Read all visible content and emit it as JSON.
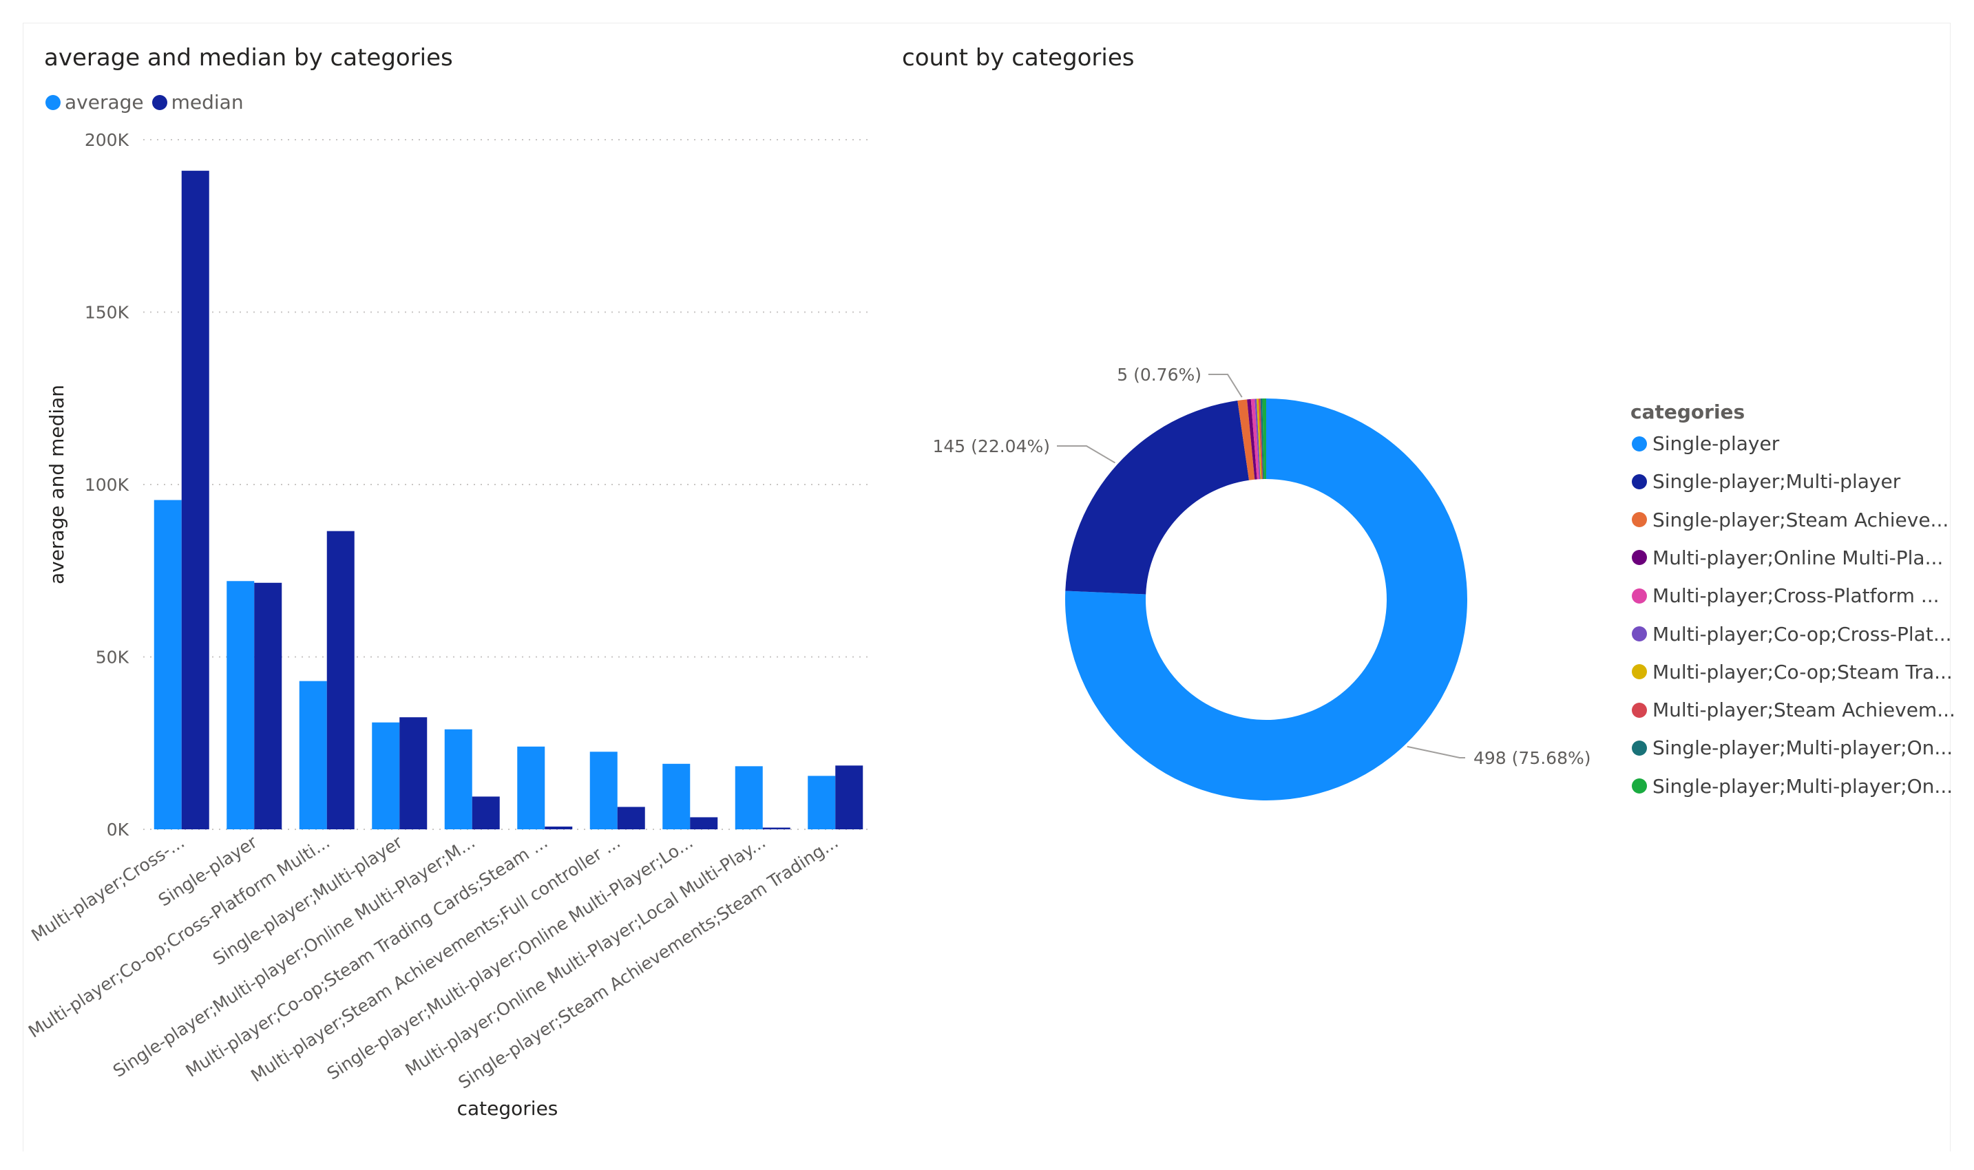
{
  "bar_chart": {
    "title": "average and median by categories",
    "legend": [
      {
        "label": "average",
        "color": "#118DFF"
      },
      {
        "label": "median",
        "color": "#12239E"
      }
    ]
  },
  "donut_chart": {
    "title": "count by categories",
    "legend_title": "categories"
  },
  "chart_data": [
    {
      "type": "bar",
      "title": "average and median by categories",
      "xlabel": "categories",
      "ylabel": "average and median",
      "ylim": [
        0,
        200000
      ],
      "yticks": [
        "0K",
        "50K",
        "100K",
        "150K",
        "200K"
      ],
      "ytick_values": [
        0,
        50000,
        100000,
        150000,
        200000
      ],
      "grid": true,
      "legend_position": "top-left",
      "categories": [
        "Multi-player;Cross-...",
        "Single-player",
        "Multi-player;Co-op;Cross-Platform Multi...",
        "Single-player;Multi-player",
        "Single-player;Multi-player;Online Multi-Player;M...",
        "Multi-player;Co-op;Steam Trading Cards;Steam ...",
        "Multi-player;Steam Achievements;Full controller ...",
        "Single-player;Multi-player;Online Multi-Player;Lo...",
        "Multi-player;Online Multi-Player;Local Multi-Play...",
        "Single-player;Steam Achievements;Steam Trading..."
      ],
      "series": [
        {
          "name": "average",
          "color": "#118DFF",
          "values": [
            95500,
            72000,
            43000,
            31000,
            29000,
            24000,
            22500,
            19000,
            18300,
            15500
          ]
        },
        {
          "name": "median",
          "color": "#12239E",
          "values": [
            191000,
            71500,
            86500,
            32500,
            9500,
            800,
            6500,
            3500,
            500,
            18500
          ]
        }
      ]
    },
    {
      "type": "pie",
      "subtype": "donut",
      "title": "count by categories",
      "legend_title": "categories",
      "legend_position": "right",
      "slices": [
        {
          "label": "Single-player",
          "value": 498,
          "color": "#118DFF",
          "data_label": "498 (75.68%)"
        },
        {
          "label": "Single-player;Multi-player",
          "value": 145,
          "color": "#12239E",
          "data_label": "145 (22.04%)"
        },
        {
          "label": "Single-player;Steam Achieve...",
          "value": 5,
          "color": "#E66C37",
          "data_label": "5 (0.76%)"
        },
        {
          "label": "Multi-player;Online Multi-Pla...",
          "value": 2,
          "color": "#6B007B",
          "data_label": ""
        },
        {
          "label": "Multi-player;Cross-Platform ...",
          "value": 2,
          "color": "#E044A7",
          "data_label": ""
        },
        {
          "label": "Multi-player;Co-op;Cross-Plat...",
          "value": 1,
          "color": "#744EC2",
          "data_label": ""
        },
        {
          "label": "Multi-player;Co-op;Steam Tra...",
          "value": 1,
          "color": "#D9B300",
          "data_label": ""
        },
        {
          "label": "Multi-player;Steam Achievem...",
          "value": 1,
          "color": "#D64550",
          "data_label": ""
        },
        {
          "label": "Single-player;Multi-player;On...",
          "value": 1,
          "color": "#197278",
          "data_label": ""
        },
        {
          "label": "Single-player;Multi-player;On...",
          "value": 2,
          "color": "#1AAB40",
          "data_label": ""
        }
      ]
    }
  ]
}
